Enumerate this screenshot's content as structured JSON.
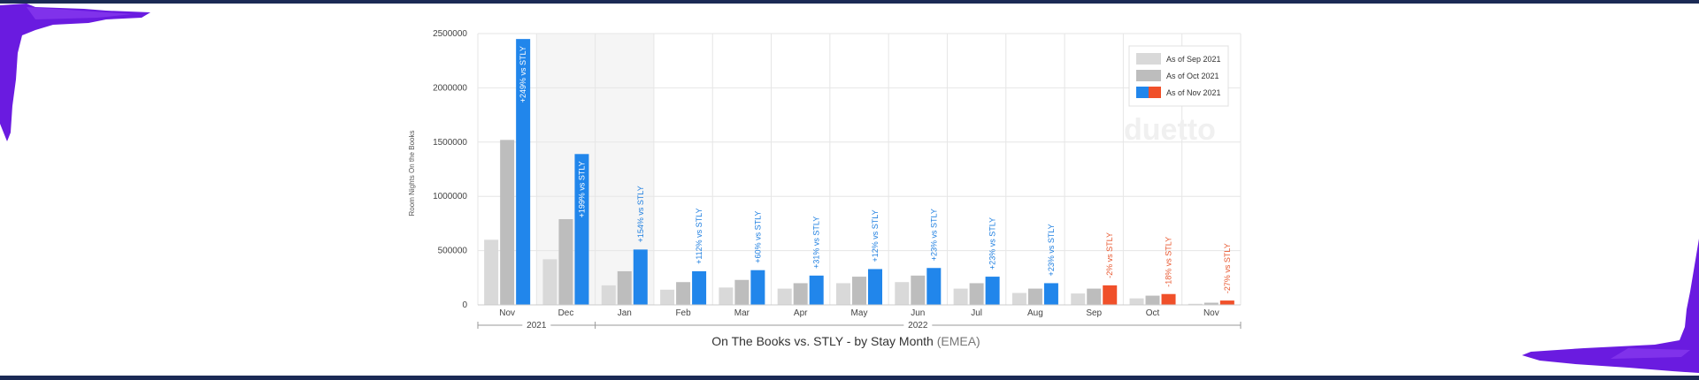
{
  "chart_data": {
    "type": "bar",
    "title": "On The Books vs. STLY - by Stay Month",
    "title_suffix": "(EMEA)",
    "ylabel": "Room Nights On the Books",
    "ylim": [
      0,
      2500000
    ],
    "yticks": [
      0,
      500000,
      1000000,
      1500000,
      2000000,
      2500000
    ],
    "grid": true,
    "legend_position": "top-right",
    "categories": [
      "Nov",
      "Dec",
      "Jan",
      "Feb",
      "Mar",
      "Apr",
      "May",
      "Jun",
      "Jul",
      "Aug",
      "Sep",
      "Oct",
      "Nov"
    ],
    "year_groups": [
      {
        "label": "2021",
        "span": 2
      },
      {
        "label": "2022",
        "span": 11
      }
    ],
    "series": [
      {
        "name": "As of Sep 2021",
        "color": "#d9d9d9",
        "values": [
          600000,
          420000,
          180000,
          140000,
          160000,
          150000,
          200000,
          210000,
          150000,
          110000,
          105000,
          60000,
          10000
        ]
      },
      {
        "name": "As of Oct 2021",
        "color": "#bdbdbd",
        "values": [
          1520000,
          790000,
          310000,
          210000,
          230000,
          200000,
          260000,
          270000,
          200000,
          150000,
          150000,
          85000,
          20000
        ]
      },
      {
        "name": "As of Nov 2021",
        "color": "#2186eb",
        "color_secondary": "#f0502a",
        "values": [
          2450000,
          1390000,
          510000,
          310000,
          320000,
          270000,
          330000,
          340000,
          260000,
          200000,
          180000,
          100000,
          40000
        ]
      }
    ],
    "negative_color": "#f0502a",
    "data_labels": [
      "+249% vs STLY",
      "+199% vs STLY",
      "+154% vs STLY",
      "+112% vs STLY",
      "+60% vs STLY",
      "+31% vs STLY",
      "+12% vs STLY",
      "+23% vs STLY",
      "+23% vs STLY",
      "+23% vs STLY",
      "-2% vs STLY",
      "-18% vs STLY",
      "-27% vs STLY"
    ],
    "label_negative": [
      false,
      false,
      false,
      false,
      false,
      false,
      false,
      false,
      false,
      false,
      true,
      true,
      true
    ],
    "label_inside_bar": [
      true,
      true,
      false,
      false,
      false,
      false,
      false,
      false,
      false,
      false,
      false,
      false,
      false
    ],
    "watermark": "duetto"
  }
}
